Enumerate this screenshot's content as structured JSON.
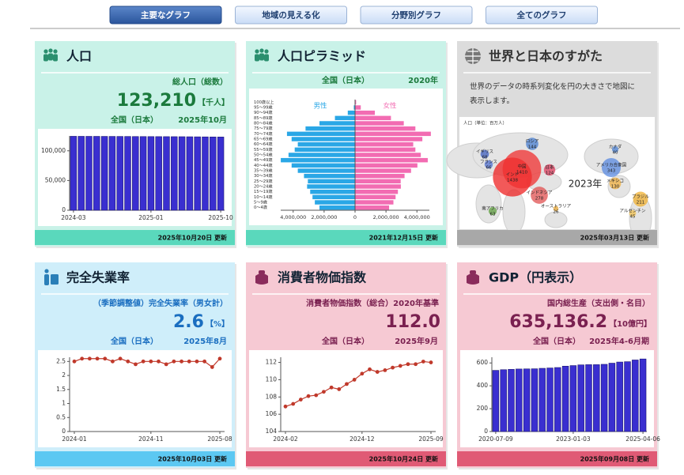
{
  "tabs": [
    "主要なグラフ",
    "地域の見える化",
    "分野別グラフ",
    "全てのグラフ"
  ],
  "cards": [
    {
      "title": "人口",
      "subtitle": "総人口（総数）",
      "value": "123,210",
      "unit": "【千人】",
      "region": "全国（日本）",
      "period": "2025年10月",
      "updated": "2025年10月20日 更新",
      "chart": {
        "type": "bar",
        "color": "#3a2fd0",
        "categories": [
          "2024-03",
          null,
          null,
          null,
          null,
          null,
          null,
          null,
          null,
          null,
          "2025-01",
          null,
          null,
          null,
          null,
          null,
          null,
          null,
          null,
          "2025-10"
        ],
        "values": [
          124400,
          124350,
          124300,
          124290,
          124250,
          124200,
          124150,
          124100,
          124000,
          123950,
          123900,
          123850,
          123800,
          123750,
          123700,
          123600,
          123500,
          123400,
          123300,
          123210
        ],
        "ylim": [
          0,
          125000
        ],
        "yticks": [
          0,
          {
            "value": 50000,
            "label": "50,000"
          },
          {
            "value": 100000,
            "label": "100,000"
          }
        ]
      }
    },
    {
      "title": "人口ピラミッド",
      "region": "全国（日本）",
      "period": "2020年",
      "updated": "2021年12月15日 更新",
      "chart": {
        "type": "pyramid",
        "categories": [
          "0～4歳",
          "5～9歳",
          "10～14歳",
          "15～19歳",
          "20～24歳",
          "25～29歳",
          "30～34歳",
          "35～39歳",
          "40～44歳",
          "45～49歳",
          "50～54歳",
          "55～59歳",
          "60～64歳",
          "65～69歳",
          "70～74歳",
          "75～79歳",
          "80～84歳",
          "85～89歳",
          "90～94歳",
          "95～99歳",
          "100歳以上"
        ],
        "series": [
          {
            "name": "男性",
            "color": "#2aa7e6",
            "values": [
              2300000,
              2600000,
              2750000,
              2900000,
              3100000,
              3050000,
              3300000,
              3700000,
              4100000,
              4800000,
              4300000,
              3900000,
              3700000,
              4100000,
              4400000,
              3200000,
              2300000,
              1300000,
              470000,
              80000,
              10000
            ]
          },
          {
            "name": "女性",
            "color": "#f26cb2",
            "values": [
              2200000,
              2480000,
              2620000,
              2770000,
              2960000,
              2950000,
              3200000,
              3620000,
              4030000,
              4700000,
              4250000,
              3900000,
              3760000,
              4350000,
              4900000,
              3900000,
              3150000,
              2320000,
              1280000,
              370000,
              70000
            ]
          }
        ],
        "xlim": [
          0,
          4600000
        ],
        "xticks": [
          0,
          {
            "value": 2000000,
            "label": "2,000,000"
          },
          {
            "value": 4000000,
            "label": "4,000,000"
          }
        ]
      }
    },
    {
      "title": "世界と日本のすがた",
      "description": [
        "世界のデータの時系列変化を円の大きさで地図に",
        "表示します。"
      ],
      "updated": "2025年03月13日 更新",
      "chart": {
        "type": "bubble-map",
        "legend": "人口（単位：百万人）",
        "year": "2023年",
        "bubbles": [
          {
            "name": "インド",
            "value": 1438,
            "color": "#ee2222"
          },
          {
            "name": "中国",
            "value": 1410,
            "color": "#f03030"
          },
          {
            "name": "ロシア",
            "value": 144,
            "color": "#4a7fd0"
          },
          {
            "name": "日本",
            "value": 124,
            "color": "#e04060"
          },
          {
            "name": "インドネシア",
            "value": 278,
            "color": "#e05050"
          },
          {
            "name": "オーストラリア",
            "value": 26,
            "color": "#e0a030"
          },
          {
            "name": "イギリス",
            "value": 68,
            "color": "#4060c0"
          },
          {
            "name": "フランス",
            "value": 66,
            "color": "#5070d0"
          },
          {
            "name": "南アフリカ",
            "value": 63,
            "color": "#60a040"
          },
          {
            "name": "カナダ",
            "value": 40,
            "color": "#4a7fd0"
          },
          {
            "name": "アメリカ合衆国",
            "value": 343,
            "color": "#5a8ae0"
          },
          {
            "name": "メキシコ",
            "value": 130,
            "color": "#f0b040"
          },
          {
            "name": "ブラジル",
            "value": 211,
            "color": "#f0b030"
          },
          {
            "name": "アルゼンチン",
            "value": 45,
            "color": "#f0c050"
          }
        ]
      }
    },
    {
      "title": "完全失業率",
      "subtitle": "（季節調整値）完全失業率（男女計）",
      "value": "2.6",
      "unit": "【%】",
      "region": "全国（日本）",
      "period": "2025年8月",
      "updated": "2025年10月03日 更新",
      "chart": {
        "type": "line",
        "color": "#c0392b",
        "categories": [
          "2024-01",
          null,
          null,
          null,
          null,
          null,
          null,
          null,
          null,
          null,
          "2024-11",
          null,
          null,
          null,
          null,
          null,
          null,
          null,
          null,
          "2025-08"
        ],
        "values": [
          2.5,
          2.6,
          2.6,
          2.6,
          2.6,
          2.5,
          2.6,
          2.5,
          2.4,
          2.5,
          2.5,
          2.5,
          2.4,
          2.5,
          2.5,
          2.5,
          2.5,
          2.5,
          2.3,
          2.6
        ],
        "ylim": [
          0,
          2.65
        ],
        "yticks": [
          0,
          0.5,
          1,
          1.5,
          2,
          2.5
        ]
      }
    },
    {
      "title": "消費者物価指数",
      "subtitle": "消費者物価指数（総合）2020年基準",
      "value": "112.0",
      "region": "全国（日本）",
      "period": "2025年9月",
      "updated": "2025年10月24日 更新",
      "chart": {
        "type": "line",
        "color": "#c0392b",
        "categories": [
          "2024-02",
          null,
          null,
          null,
          null,
          null,
          null,
          null,
          null,
          null,
          "2024-12",
          null,
          null,
          null,
          null,
          null,
          null,
          null,
          null,
          "2025-09"
        ],
        "values": [
          106.9,
          107.2,
          107.7,
          108.1,
          108.2,
          108.6,
          109.1,
          108.9,
          109.5,
          110.0,
          110.7,
          111.2,
          110.9,
          111.1,
          111.4,
          111.6,
          111.8,
          111.8,
          112.1,
          112.0
        ],
        "ylim": [
          104,
          112.6
        ],
        "yticks": [
          104,
          106,
          108,
          110,
          112
        ]
      }
    },
    {
      "title": "GDP（円表示）",
      "subtitle": "国内総生産（支出側・名目）",
      "value": "635,136.2",
      "unit": "【10億円】",
      "region": "全国（日本）",
      "period": "2025年4-6月期",
      "updated": "2025年09月08日 更新",
      "chart": {
        "type": "bar",
        "color": "#3a2fd0",
        "categories": [
          "2020-07-09",
          null,
          null,
          null,
          null,
          null,
          null,
          null,
          null,
          null,
          "2023-01-03",
          null,
          null,
          null,
          null,
          null,
          null,
          null,
          null,
          "2025-04-06"
        ],
        "values": [
          535,
          541,
          544,
          547,
          548,
          549,
          553,
          556,
          560,
          572,
          577,
          583,
          585,
          585,
          588,
          598,
          608,
          611,
          626,
          635
        ],
        "ylim": [
          0,
          650
        ],
        "yticks": [
          0,
          200,
          400,
          600
        ]
      }
    }
  ]
}
